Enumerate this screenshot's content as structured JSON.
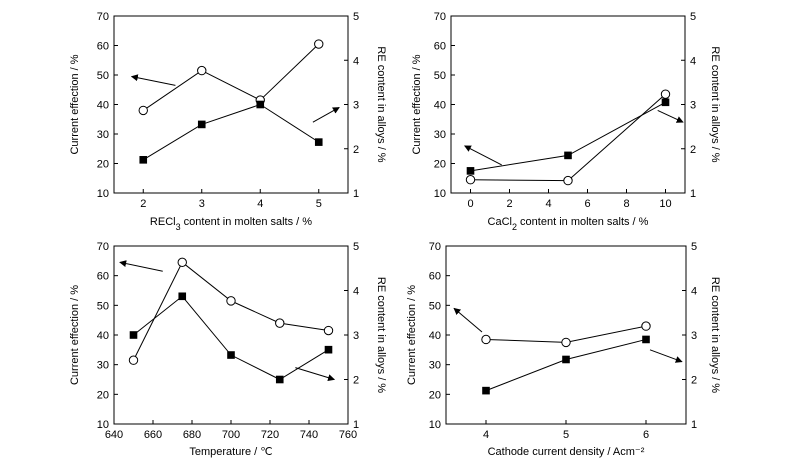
{
  "chart_data": [
    {
      "type": "line",
      "xlabel": "RECl3 content in molten salts / %",
      "xlabel_main": "RECl",
      "xlabel_sub": "3",
      "xlabel_rest": " content in molten salts / %",
      "ylabel": "Current effection / %",
      "y2label": "RE content in alloys / %",
      "xlim": [
        1.5,
        5.5
      ],
      "ylim": [
        10,
        70
      ],
      "y2lim": [
        1,
        5
      ],
      "xticks": [
        2,
        3,
        4,
        5
      ],
      "xtick_labels": [
        "2",
        "3",
        "4",
        "5"
      ],
      "yticks": [
        10,
        20,
        30,
        40,
        50,
        60,
        70
      ],
      "ytick_labels": [
        "10",
        "20",
        "30",
        "40",
        "50",
        "60",
        "70"
      ],
      "y2ticks": [
        1,
        2,
        3,
        4,
        5
      ],
      "y2tick_labels": [
        "1",
        "2",
        "3",
        "4",
        "5"
      ],
      "series": [
        {
          "marker": "open-circle",
          "axis": "left",
          "x": [
            2,
            3,
            4,
            5
          ],
          "values": [
            38,
            51.5,
            41.5,
            60.5
          ]
        },
        {
          "marker": "filled-square",
          "axis": "right",
          "x": [
            2,
            3,
            4,
            5
          ],
          "values": [
            1.75,
            2.55,
            3.0,
            2.15
          ]
        }
      ],
      "arrows": [
        {
          "points_to": "left",
          "from": [
            2.55,
            46.5
          ],
          "to": [
            1.8,
            49.5
          ]
        },
        {
          "points_to": "right",
          "from": [
            4.9,
            34
          ],
          "to": [
            5.35,
            39
          ]
        }
      ]
    },
    {
      "type": "line",
      "xlabel": "CaCl2 content in molten salts / %",
      "xlabel_main": "CaCl",
      "xlabel_sub": "2",
      "xlabel_rest": " content in molten salts / %",
      "ylabel": "Current effection / %",
      "y2label": "RE content in alloys / %",
      "xlim": [
        -1,
        11
      ],
      "ylim": [
        10,
        70
      ],
      "y2lim": [
        1,
        5
      ],
      "xticks": [
        0,
        2,
        4,
        6,
        8,
        10
      ],
      "xtick_labels": [
        "0",
        "2",
        "4",
        "6",
        "8",
        "10"
      ],
      "yticks": [
        10,
        20,
        30,
        40,
        50,
        60,
        70
      ],
      "ytick_labels": [
        "10",
        "20",
        "30",
        "40",
        "50",
        "60",
        "70"
      ],
      "y2ticks": [
        1,
        2,
        3,
        4,
        5
      ],
      "y2tick_labels": [
        "1",
        "2",
        "3",
        "4",
        "5"
      ],
      "series": [
        {
          "marker": "open-circle",
          "axis": "left",
          "x": [
            0,
            5,
            10
          ],
          "values": [
            14.5,
            14.2,
            43.5
          ]
        },
        {
          "marker": "filled-square",
          "axis": "right",
          "x": [
            0,
            5,
            10
          ],
          "values": [
            1.5,
            1.85,
            3.05
          ]
        }
      ],
      "arrows": [
        {
          "points_to": "left",
          "from": [
            1.6,
            19.5
          ],
          "to": [
            -0.3,
            26
          ]
        },
        {
          "points_to": "right",
          "from": [
            9.6,
            38
          ],
          "to": [
            10.9,
            34
          ]
        }
      ]
    },
    {
      "type": "line",
      "xlabel": "Temperature / ℃",
      "ylabel": "Current effection / %",
      "y2label": "RE content in alloys / %",
      "xlim": [
        640,
        760
      ],
      "ylim": [
        10,
        70
      ],
      "y2lim": [
        1,
        5
      ],
      "xticks": [
        640,
        660,
        680,
        700,
        720,
        740,
        760
      ],
      "xtick_labels": [
        "640",
        "660",
        "680",
        "700",
        "720",
        "740",
        "760"
      ],
      "yticks": [
        10,
        20,
        30,
        40,
        50,
        60,
        70
      ],
      "ytick_labels": [
        "10",
        "20",
        "30",
        "40",
        "50",
        "60",
        "70"
      ],
      "y2ticks": [
        1,
        2,
        3,
        4,
        5
      ],
      "y2tick_labels": [
        "1",
        "2",
        "3",
        "4",
        "5"
      ],
      "series": [
        {
          "marker": "open-circle",
          "axis": "left",
          "x": [
            650,
            675,
            700,
            725,
            750
          ],
          "values": [
            31.5,
            64.5,
            51.5,
            44,
            41.5
          ]
        },
        {
          "marker": "filled-square",
          "axis": "right",
          "x": [
            650,
            675,
            700,
            725,
            750
          ],
          "values": [
            3.0,
            3.87,
            2.55,
            2.0,
            2.67
          ]
        }
      ],
      "arrows": [
        {
          "points_to": "left",
          "from": [
            665,
            61.5
          ],
          "to": [
            643,
            64.5
          ]
        },
        {
          "points_to": "right",
          "from": [
            733,
            29
          ],
          "to": [
            753,
            25
          ]
        }
      ]
    },
    {
      "type": "line",
      "xlabel": "Cathode current density / Acm⁻²",
      "ylabel": "Current effection / %",
      "y2label": "RE content in alloys / %",
      "xlim": [
        3.5,
        6.5
      ],
      "ylim": [
        10,
        70
      ],
      "y2lim": [
        1,
        5
      ],
      "xticks": [
        4,
        5,
        6
      ],
      "xtick_labels": [
        "4",
        "5",
        "6"
      ],
      "yticks": [
        10,
        20,
        30,
        40,
        50,
        60,
        70
      ],
      "ytick_labels": [
        "10",
        "20",
        "30",
        "40",
        "50",
        "60",
        "70"
      ],
      "y2ticks": [
        1,
        2,
        3,
        4,
        5
      ],
      "y2tick_labels": [
        "1",
        "2",
        "3",
        "4",
        "5"
      ],
      "series": [
        {
          "marker": "open-circle",
          "axis": "left",
          "x": [
            4,
            5,
            6
          ],
          "values": [
            38.5,
            37.5,
            43
          ]
        },
        {
          "marker": "filled-square",
          "axis": "right",
          "x": [
            4,
            5,
            6
          ],
          "values": [
            1.75,
            2.45,
            2.9
          ]
        }
      ],
      "arrows": [
        {
          "points_to": "left",
          "from": [
            3.95,
            41
          ],
          "to": [
            3.6,
            49
          ]
        },
        {
          "points_to": "right",
          "from": [
            6.05,
            35
          ],
          "to": [
            6.45,
            31
          ]
        }
      ]
    }
  ]
}
